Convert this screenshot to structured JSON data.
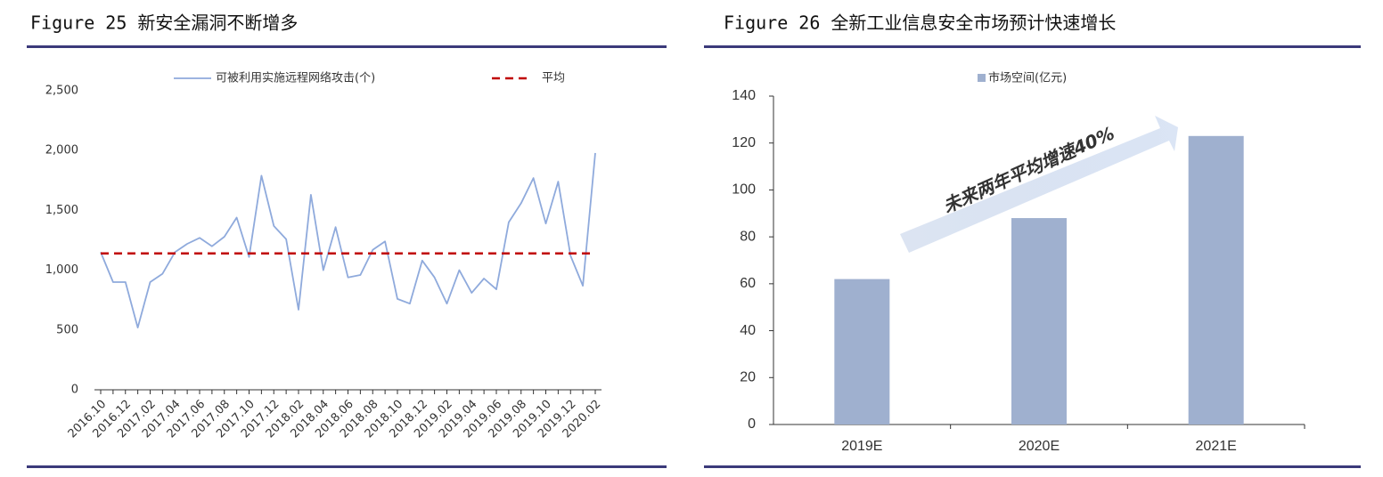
{
  "chart_data": [
    {
      "type": "line",
      "title": "Figure 25 新安全漏洞不断增多",
      "categories": [
        "2016.10",
        null,
        "2016.12",
        null,
        "2017.02",
        null,
        "2017.04",
        null,
        "2017.06",
        null,
        "2017.08",
        null,
        "2017.10",
        null,
        "2017.12",
        null,
        "2018.02",
        null,
        "2018.04",
        null,
        "2018.06",
        null,
        "2018.08",
        null,
        "2018.10",
        null,
        "2018.12",
        null,
        "2019.02",
        null,
        "2019.04",
        null,
        "2019.06",
        null,
        "2019.08",
        null,
        "2019.10",
        null,
        "2019.12",
        null,
        "2020.02"
      ],
      "series": [
        {
          "name": "可被利用实施远程网络攻击(个)",
          "color": "#8faadc",
          "values": [
            1150,
            900,
            900,
            520,
            900,
            970,
            1150,
            1220,
            1270,
            1200,
            1280,
            1440,
            1110,
            1790,
            1370,
            1260,
            670,
            1630,
            1000,
            1360,
            940,
            960,
            1170,
            1240,
            760,
            720,
            1080,
            940,
            720,
            1000,
            810,
            930,
            840,
            1400,
            1560,
            1770,
            1390,
            1740,
            1120,
            870,
            1980
          ]
        },
        {
          "name": "平均",
          "color": "#c00000",
          "dashed": true,
          "values": [
            1140,
            1140,
            1140,
            1140,
            1140,
            1140,
            1140,
            1140,
            1140,
            1140,
            1140,
            1140,
            1140,
            1140,
            1140,
            1140,
            1140,
            1140,
            1140,
            1140,
            1140,
            1140,
            1140,
            1140,
            1140,
            1140,
            1140,
            1140,
            1140,
            1140,
            1140,
            1140,
            1140,
            1140,
            1140,
            1140,
            1140,
            1140,
            1140,
            1140,
            1140
          ]
        }
      ],
      "ylim": [
        0,
        2500
      ],
      "yticks": [
        0,
        500,
        {
          "value": 1000,
          "label": "1,000"
        },
        {
          "value": 1500,
          "label": "1,500"
        },
        {
          "value": 2000,
          "label": "2,000"
        },
        {
          "value": 2500,
          "label": "2,500"
        }
      ],
      "grid": false,
      "legend": "top"
    },
    {
      "type": "bar",
      "title": "Figure 26 全新工业信息安全市场预计快速增长",
      "categories": [
        "2019E",
        "2020E",
        "2021E"
      ],
      "series": [
        {
          "name": "市场空间(亿元)",
          "color": "#9fb0cf",
          "values": [
            62,
            88,
            123
          ]
        }
      ],
      "ylim": [
        0,
        140
      ],
      "yticks": [
        0,
        20,
        40,
        60,
        80,
        100,
        120,
        140
      ],
      "annotation": "未来两年平均增速40%",
      "grid": false,
      "legend": "top"
    }
  ]
}
